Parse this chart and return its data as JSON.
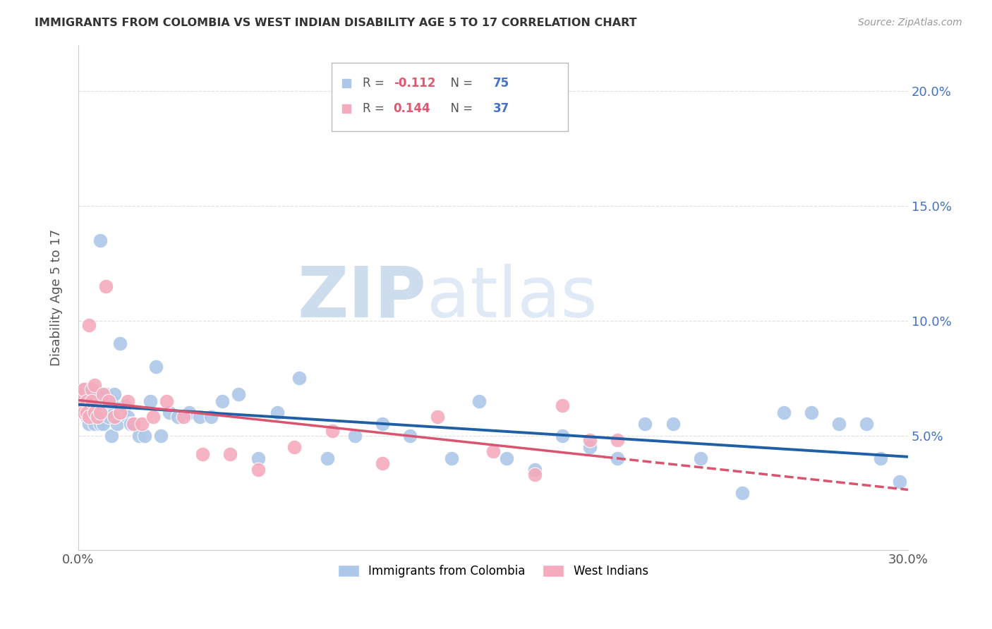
{
  "title": "IMMIGRANTS FROM COLOMBIA VS WEST INDIAN DISABILITY AGE 5 TO 17 CORRELATION CHART",
  "source": "Source: ZipAtlas.com",
  "xlabel_colombia": "Immigrants from Colombia",
  "xlabel_west_indians": "West Indians",
  "ylabel": "Disability Age 5 to 17",
  "xlim": [
    0.0,
    0.3
  ],
  "ylim": [
    0.0,
    0.22
  ],
  "xtick_positions": [
    0.0,
    0.05,
    0.1,
    0.15,
    0.2,
    0.25,
    0.3
  ],
  "xtick_labels": [
    "0.0%",
    "",
    "",
    "",
    "",
    "",
    "30.0%"
  ],
  "ytick_positions": [
    0.0,
    0.05,
    0.1,
    0.15,
    0.2
  ],
  "ytick_labels_right": [
    "",
    "5.0%",
    "10.0%",
    "15.0%",
    "20.0%"
  ],
  "legend_colombia_R": "-0.112",
  "legend_colombia_N": "75",
  "legend_west_R": "0.144",
  "legend_west_N": "37",
  "colombia_color": "#adc8e8",
  "west_color": "#f5abbe",
  "colombia_line_color": "#1f5fa6",
  "west_line_color": "#d9546e",
  "colombia_x": [
    0.001,
    0.001,
    0.002,
    0.002,
    0.002,
    0.003,
    0.003,
    0.003,
    0.004,
    0.004,
    0.004,
    0.005,
    0.005,
    0.005,
    0.006,
    0.006,
    0.006,
    0.007,
    0.007,
    0.008,
    0.008,
    0.008,
    0.009,
    0.009,
    0.01,
    0.01,
    0.011,
    0.011,
    0.012,
    0.012,
    0.013,
    0.013,
    0.014,
    0.015,
    0.016,
    0.017,
    0.018,
    0.019,
    0.02,
    0.022,
    0.024,
    0.026,
    0.028,
    0.03,
    0.033,
    0.036,
    0.04,
    0.044,
    0.048,
    0.052,
    0.058,
    0.065,
    0.072,
    0.08,
    0.09,
    0.1,
    0.11,
    0.12,
    0.135,
    0.145,
    0.155,
    0.165,
    0.175,
    0.185,
    0.195,
    0.205,
    0.215,
    0.225,
    0.24,
    0.255,
    0.265,
    0.275,
    0.285,
    0.29,
    0.297
  ],
  "colombia_y": [
    0.068,
    0.063,
    0.07,
    0.065,
    0.06,
    0.068,
    0.058,
    0.062,
    0.055,
    0.065,
    0.06,
    0.058,
    0.07,
    0.063,
    0.055,
    0.06,
    0.068,
    0.058,
    0.063,
    0.055,
    0.135,
    0.06,
    0.063,
    0.055,
    0.068,
    0.065,
    0.063,
    0.058,
    0.05,
    0.065,
    0.06,
    0.068,
    0.055,
    0.09,
    0.06,
    0.063,
    0.058,
    0.055,
    0.055,
    0.05,
    0.05,
    0.065,
    0.08,
    0.05,
    0.06,
    0.058,
    0.06,
    0.058,
    0.058,
    0.065,
    0.068,
    0.04,
    0.06,
    0.075,
    0.04,
    0.05,
    0.055,
    0.05,
    0.04,
    0.065,
    0.04,
    0.035,
    0.05,
    0.045,
    0.04,
    0.055,
    0.055,
    0.04,
    0.025,
    0.06,
    0.06,
    0.055,
    0.055,
    0.04,
    0.03
  ],
  "west_x": [
    0.001,
    0.001,
    0.002,
    0.002,
    0.003,
    0.003,
    0.004,
    0.004,
    0.005,
    0.005,
    0.006,
    0.006,
    0.007,
    0.008,
    0.009,
    0.01,
    0.011,
    0.013,
    0.015,
    0.018,
    0.02,
    0.023,
    0.027,
    0.032,
    0.038,
    0.045,
    0.055,
    0.065,
    0.078,
    0.092,
    0.11,
    0.13,
    0.15,
    0.165,
    0.175,
    0.185,
    0.195
  ],
  "west_y": [
    0.068,
    0.063,
    0.06,
    0.07,
    0.065,
    0.06,
    0.058,
    0.098,
    0.07,
    0.065,
    0.06,
    0.072,
    0.058,
    0.06,
    0.068,
    0.115,
    0.065,
    0.058,
    0.06,
    0.065,
    0.055,
    0.055,
    0.058,
    0.065,
    0.058,
    0.042,
    0.042,
    0.035,
    0.045,
    0.052,
    0.038,
    0.058,
    0.043,
    0.033,
    0.063,
    0.048,
    0.048
  ],
  "watermark_zip": "ZIP",
  "watermark_atlas": "atlas",
  "background_color": "#ffffff",
  "grid_color": "#e0e0e0"
}
